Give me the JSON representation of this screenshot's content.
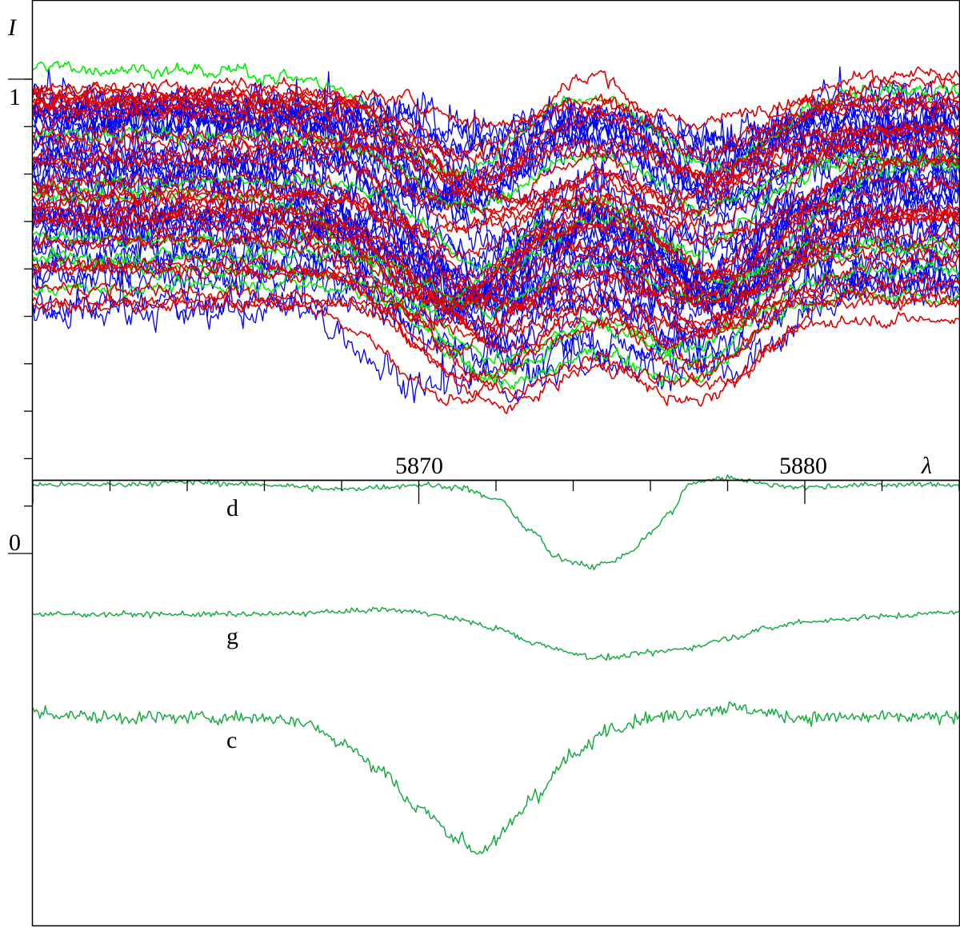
{
  "chart_data": [
    {
      "type": "line",
      "panel": "top",
      "ylabel": "I",
      "xlabel": "λ",
      "y_tick_labels": [
        "1"
      ],
      "x_tick_labels": [
        "5870",
        "5880"
      ],
      "xlim": [
        5860,
        5884
      ],
      "ylim": [
        0.0,
        1.04
      ],
      "grid": false,
      "series_colors": [
        "#0000ff",
        "#e00000",
        "#00ee00"
      ],
      "series_groups": [
        {
          "color": "#0000ff",
          "count": 34,
          "noise": 0.022
        },
        {
          "color": "#e00000",
          "count": 32,
          "noise": 0.009
        },
        {
          "color": "#00ee00",
          "count": 8,
          "noise": 0.009
        }
      ],
      "line_profiles": [
        {
          "center": 5871.6,
          "depth": 0.18,
          "width": 1.2
        },
        {
          "center": 5877.3,
          "depth": 0.16,
          "width": 1.1
        }
      ],
      "continuum_range": [
        0.52,
        1.0
      ]
    },
    {
      "type": "line",
      "panel": "bottom",
      "y_tick_labels": [
        "0"
      ],
      "xlim": [
        5860,
        5884
      ],
      "grid": false,
      "series": [
        {
          "name": "d",
          "color": "#1aaa44",
          "x": [
            5860,
            5862,
            5864,
            5866,
            5868,
            5869,
            5870,
            5871,
            5872,
            5873,
            5873.5,
            5874,
            5874.5,
            5875,
            5875.5,
            5876,
            5876.5,
            5877,
            5877.5,
            5878,
            5878.5,
            5879,
            5880,
            5882,
            5884
          ],
          "y": [
            0.0,
            0.0,
            0.005,
            0.0,
            -0.01,
            -0.005,
            0.0,
            -0.005,
            -0.03,
            -0.1,
            -0.15,
            -0.16,
            -0.17,
            -0.16,
            -0.14,
            -0.1,
            -0.06,
            0.0,
            0.01,
            0.015,
            0.01,
            0.0,
            -0.005,
            0.0,
            0.0
          ]
        },
        {
          "name": "g",
          "color": "#1aaa44",
          "x": [
            5860,
            5862,
            5864,
            5866,
            5868,
            5869,
            5870,
            5871,
            5872,
            5873,
            5874,
            5874.5,
            5875,
            5876,
            5877,
            5878,
            5879,
            5880,
            5882,
            5884
          ],
          "y": [
            0.0,
            0.0,
            0.0,
            0.0,
            0.005,
            0.01,
            0.005,
            -0.01,
            -0.03,
            -0.06,
            -0.08,
            -0.09,
            -0.09,
            -0.08,
            -0.07,
            -0.05,
            -0.03,
            -0.015,
            -0.005,
            0.005
          ]
        },
        {
          "name": "c",
          "color": "#1aaa44",
          "x": [
            5860,
            5862,
            5864,
            5866,
            5867,
            5868,
            5869,
            5870,
            5871,
            5871.5,
            5872,
            5872.5,
            5873,
            5874,
            5875,
            5876,
            5878,
            5880,
            5882,
            5884
          ],
          "y": [
            0.01,
            0.0,
            0.0,
            0.0,
            -0.01,
            -0.05,
            -0.11,
            -0.19,
            -0.25,
            -0.28,
            -0.26,
            -0.21,
            -0.16,
            -0.08,
            -0.02,
            0.0,
            0.02,
            0.0,
            0.0,
            0.0
          ]
        }
      ]
    }
  ]
}
